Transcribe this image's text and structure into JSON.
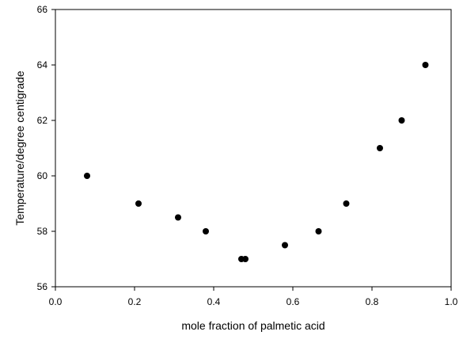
{
  "chart_data": {
    "type": "scatter",
    "title": "",
    "xlabel": "mole fraction of palmetic acid",
    "ylabel": "Temperature/degree centigrade",
    "xlim": [
      0.0,
      1.0
    ],
    "ylim": [
      56,
      66
    ],
    "x_ticks": [
      "0.0",
      "0.2",
      "0.4",
      "0.6",
      "0.8",
      "1.0"
    ],
    "y_ticks": [
      "56",
      "58",
      "60",
      "62",
      "64",
      "66"
    ],
    "grid": false,
    "legend": "none",
    "marker_color": "#000000",
    "points": [
      {
        "x": 0.08,
        "y": 60.0
      },
      {
        "x": 0.21,
        "y": 59.0
      },
      {
        "x": 0.31,
        "y": 58.5
      },
      {
        "x": 0.38,
        "y": 58.0
      },
      {
        "x": 0.47,
        "y": 57.0
      },
      {
        "x": 0.48,
        "y": 57.0
      },
      {
        "x": 0.58,
        "y": 57.5
      },
      {
        "x": 0.665,
        "y": 58.0
      },
      {
        "x": 0.735,
        "y": 59.0
      },
      {
        "x": 0.82,
        "y": 61.0
      },
      {
        "x": 0.875,
        "y": 62.0
      },
      {
        "x": 0.935,
        "y": 64.0
      }
    ]
  }
}
